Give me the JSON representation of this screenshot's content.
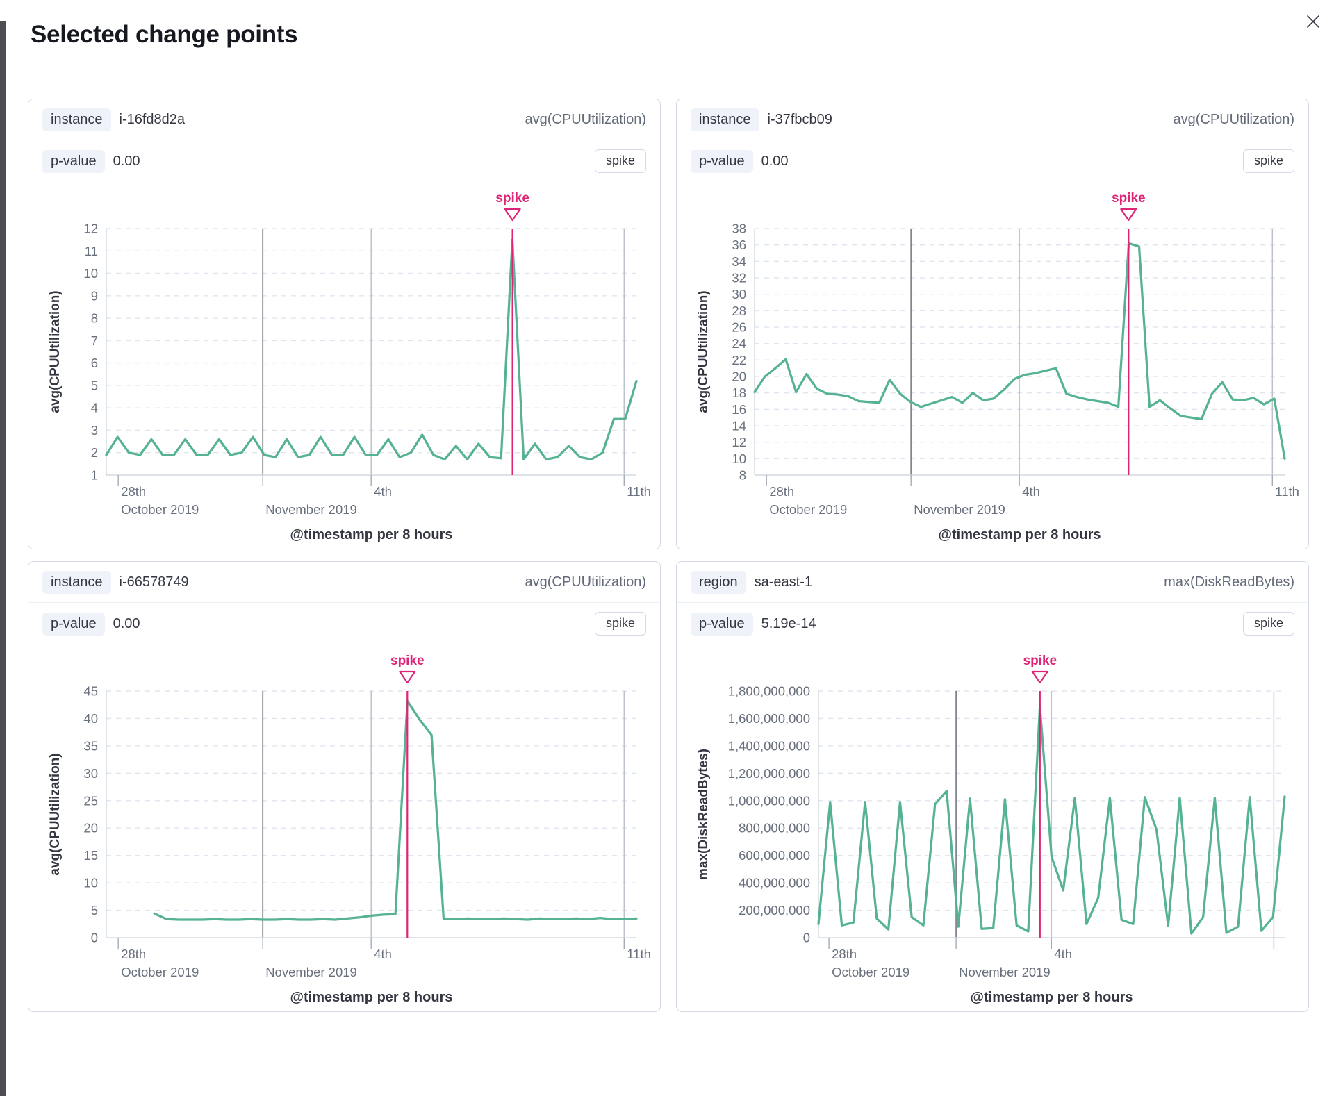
{
  "modal": {
    "title": "Selected change points",
    "close_icon": "x-icon"
  },
  "colors": {
    "series_green": "#55b292",
    "accent_pink": "#dd2477",
    "grid_dash": "#e2e5ef",
    "month_line": "#83868e",
    "day_line": "#bdc1c9",
    "axis_line": "#d3d8e2",
    "tick_text": "#69707d",
    "axis_title_text": "#343741"
  },
  "panels": [
    {
      "badge_label": "instance",
      "badge_value": "i-16fd8d2a",
      "metric": "avg(CPUUtilization)",
      "pvalue_label": "p-value",
      "pvalue": "0.00",
      "spike_label": "spike"
    },
    {
      "badge_label": "instance",
      "badge_value": "i-37fbcb09",
      "metric": "avg(CPUUtilization)",
      "pvalue_label": "p-value",
      "pvalue": "0.00",
      "spike_label": "spike"
    },
    {
      "badge_label": "instance",
      "badge_value": "i-66578749",
      "metric": "avg(CPUUtilization)",
      "pvalue_label": "p-value",
      "pvalue": "0.00",
      "spike_label": "spike"
    },
    {
      "badge_label": "region",
      "badge_value": "sa-east-1",
      "metric": "max(DiskReadBytes)",
      "pvalue_label": "p-value",
      "pvalue": "5.19e-14",
      "spike_label": "spike"
    }
  ],
  "chart_data": [
    {
      "type": "line",
      "ylabel": "avg(CPUUtilization)",
      "xlabel": "@timestamp per 8 hours",
      "ylim": [
        1,
        12
      ],
      "ytick_step": 1,
      "ytick_format": "plain",
      "x_domain_days": [
        0,
        14.67
      ],
      "x_ticks": [
        {
          "x": 0.33,
          "day": "28th",
          "month": "October 2019"
        },
        {
          "x": 4.33,
          "day": "",
          "month": "November 2019"
        },
        {
          "x": 7.33,
          "day": "4th",
          "month": ""
        },
        {
          "x": 14.33,
          "day": "11th",
          "month": ""
        }
      ],
      "month_line_x": 4.33,
      "day_lines_x": [
        7.33,
        14.33
      ],
      "annotation": {
        "label": "spike",
        "x": 11.24
      },
      "series": [
        {
          "name": "avg(CPUUtilization)",
          "x_start": 0,
          "x_end": 14.67,
          "values": [
            1.9,
            2.7,
            2.0,
            1.9,
            2.6,
            1.9,
            1.9,
            2.6,
            1.9,
            1.9,
            2.6,
            1.9,
            2.0,
            2.7,
            1.9,
            1.8,
            2.6,
            1.8,
            1.9,
            2.7,
            1.9,
            1.9,
            2.7,
            1.9,
            1.9,
            2.6,
            1.8,
            2.0,
            2.8,
            1.9,
            1.7,
            2.3,
            1.7,
            2.4,
            1.8,
            1.75,
            11.5,
            1.7,
            2.4,
            1.7,
            1.8,
            2.3,
            1.8,
            1.7,
            2.0,
            3.5,
            3.5,
            5.2
          ]
        }
      ]
    },
    {
      "type": "line",
      "ylabel": "avg(CPUUtilization)",
      "xlabel": "@timestamp per 8 hours",
      "ylim": [
        8,
        38
      ],
      "ytick_step": 2,
      "ytick_format": "plain",
      "x_domain_days": [
        0,
        14.67
      ],
      "x_ticks": [
        {
          "x": 0.33,
          "day": "28th",
          "month": "October 2019"
        },
        {
          "x": 4.33,
          "day": "",
          "month": "November 2019"
        },
        {
          "x": 7.33,
          "day": "4th",
          "month": ""
        },
        {
          "x": 14.33,
          "day": "11th",
          "month": ""
        }
      ],
      "month_line_x": 4.33,
      "day_lines_x": [
        7.33,
        14.33
      ],
      "annotation": {
        "label": "spike",
        "x": 10.35
      },
      "series": [
        {
          "name": "avg(CPUUtilization)",
          "x_start": 0,
          "x_end": 14.67,
          "values": [
            18.1,
            20.0,
            21.0,
            22.1,
            18.1,
            20.3,
            18.5,
            17.9,
            17.8,
            17.6,
            17.0,
            16.9,
            16.8,
            19.6,
            17.9,
            16.9,
            16.3,
            16.7,
            17.1,
            17.5,
            16.8,
            18.0,
            17.1,
            17.3,
            18.4,
            19.7,
            20.2,
            20.4,
            20.7,
            21.0,
            17.9,
            17.5,
            17.2,
            17.0,
            16.8,
            16.3,
            36.2,
            35.8,
            16.3,
            17.1,
            16.1,
            15.2,
            15.0,
            14.8,
            17.9,
            19.3,
            17.2,
            17.1,
            17.4,
            16.6,
            17.3,
            10.0
          ]
        }
      ]
    },
    {
      "type": "line",
      "ylabel": "avg(CPUUtilization)",
      "xlabel": "@timestamp per 8 hours",
      "ylim": [
        0,
        45
      ],
      "ytick_step": 5,
      "ytick_format": "plain",
      "x_domain_days": [
        0,
        14.67
      ],
      "x_ticks": [
        {
          "x": 0.33,
          "day": "28th",
          "month": "October 2019"
        },
        {
          "x": 4.33,
          "day": "",
          "month": "November 2019"
        },
        {
          "x": 7.33,
          "day": "4th",
          "month": ""
        },
        {
          "x": 14.33,
          "day": "11th",
          "month": ""
        }
      ],
      "month_line_x": 4.33,
      "day_lines_x": [
        7.33,
        14.33
      ],
      "annotation": {
        "label": "spike",
        "x": 8.33
      },
      "series": [
        {
          "name": "avg(CPUUtilization)",
          "x_start": 1.33,
          "x_end": 14.67,
          "values": [
            4.4,
            3.4,
            3.3,
            3.3,
            3.3,
            3.4,
            3.3,
            3.3,
            3.4,
            3.3,
            3.3,
            3.4,
            3.3,
            3.3,
            3.4,
            3.3,
            3.5,
            3.7,
            4.0,
            4.2,
            4.3,
            43.2,
            39.8,
            37.0,
            3.4,
            3.4,
            3.5,
            3.4,
            3.4,
            3.5,
            3.4,
            3.3,
            3.5,
            3.4,
            3.4,
            3.5,
            3.4,
            3.6,
            3.4,
            3.4,
            3.5
          ]
        }
      ]
    },
    {
      "type": "line",
      "ylabel": "max(DiskReadBytes)",
      "xlabel": "@timestamp per 8 hours",
      "ylim": [
        0,
        1800000000
      ],
      "ytick_step": 200000000,
      "ytick_format": "comma",
      "x_domain_days": [
        0,
        14.67
      ],
      "x_ticks": [
        {
          "x": 0.33,
          "day": "28th",
          "month": "October 2019"
        },
        {
          "x": 4.33,
          "day": "",
          "month": "November 2019"
        },
        {
          "x": 7.33,
          "day": "4th",
          "month": ""
        },
        {
          "x": 14.33,
          "day": "",
          "month": ""
        }
      ],
      "month_line_x": 4.33,
      "day_lines_x": [
        7.33,
        14.33
      ],
      "annotation": {
        "label": "spike",
        "x": 6.97
      },
      "series": [
        {
          "name": "max(DiskReadBytes)",
          "x_start": 0,
          "x_end": 14.67,
          "values": [
            100000000,
            990000000,
            90000000,
            110000000,
            990000000,
            140000000,
            60000000,
            990000000,
            150000000,
            90000000,
            975000000,
            1070000000,
            80000000,
            1015000000,
            65000000,
            70000000,
            1010000000,
            90000000,
            45000000,
            1690000000,
            590000000,
            345000000,
            1020000000,
            100000000,
            290000000,
            1020000000,
            130000000,
            100000000,
            1025000000,
            790000000,
            85000000,
            1020000000,
            30000000,
            150000000,
            1020000000,
            35000000,
            80000000,
            1025000000,
            50000000,
            150000000,
            1030000000
          ]
        }
      ]
    }
  ]
}
